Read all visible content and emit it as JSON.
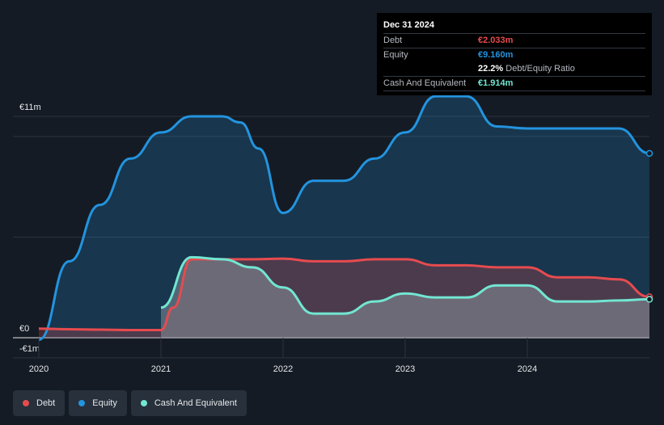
{
  "tooltip": {
    "date": "Dec 31 2024",
    "debt_label": "Debt",
    "debt_value": "€2.033m",
    "equity_label": "Equity",
    "equity_value": "€9.160m",
    "ratio_value": "22.2%",
    "ratio_text": "Debt/Equity Ratio",
    "cash_label": "Cash And Equivalent",
    "cash_value": "€1.914m"
  },
  "legend": [
    {
      "label": "Debt",
      "color": "#e64b4f"
    },
    {
      "label": "Equity",
      "color": "#2394df"
    },
    {
      "label": "Cash And Equivalent",
      "color": "#72e6d2"
    }
  ],
  "chart_data": {
    "type": "area",
    "y_tick_labels": [
      "€11m",
      "€0",
      "-€1m"
    ],
    "x_tick_labels": [
      "2020",
      "2021",
      "2022",
      "2023",
      "2024"
    ],
    "ylim": [
      -1,
      11
    ],
    "xlim": [
      2020,
      2025
    ],
    "grid": true,
    "legend_position": "bottom-left",
    "series": [
      {
        "name": "Equity",
        "color": "#2394df",
        "points": [
          [
            2020.0,
            -0.1
          ],
          [
            2020.25,
            3.8
          ],
          [
            2020.5,
            6.6
          ],
          [
            2020.75,
            8.9
          ],
          [
            2021.0,
            10.2
          ],
          [
            2021.25,
            11.0
          ],
          [
            2021.5,
            11.0
          ],
          [
            2021.65,
            10.7
          ],
          [
            2021.8,
            9.4
          ],
          [
            2022.0,
            6.2
          ],
          [
            2022.25,
            7.8
          ],
          [
            2022.5,
            7.8
          ],
          [
            2022.75,
            8.9
          ],
          [
            2023.0,
            10.2
          ],
          [
            2023.25,
            12.0
          ],
          [
            2023.5,
            12.0
          ],
          [
            2023.75,
            10.5
          ],
          [
            2024.0,
            10.4
          ],
          [
            2024.25,
            10.4
          ],
          [
            2024.5,
            10.4
          ],
          [
            2024.75,
            10.4
          ],
          [
            2025.0,
            9.16
          ]
        ]
      },
      {
        "name": "Debt",
        "color": "#e64b4f",
        "points": [
          [
            2020.0,
            0.45
          ],
          [
            2020.25,
            0.42
          ],
          [
            2020.5,
            0.4
          ],
          [
            2020.75,
            0.38
          ],
          [
            2021.0,
            0.38
          ],
          [
            2021.1,
            1.5
          ],
          [
            2021.25,
            3.9
          ],
          [
            2021.5,
            3.9
          ],
          [
            2021.75,
            3.9
          ],
          [
            2022.0,
            3.93
          ],
          [
            2022.25,
            3.8
          ],
          [
            2022.5,
            3.8
          ],
          [
            2022.75,
            3.9
          ],
          [
            2023.0,
            3.9
          ],
          [
            2023.25,
            3.6
          ],
          [
            2023.5,
            3.6
          ],
          [
            2023.75,
            3.5
          ],
          [
            2024.0,
            3.5
          ],
          [
            2024.25,
            3.0
          ],
          [
            2024.5,
            3.0
          ],
          [
            2024.75,
            2.9
          ],
          [
            2025.0,
            2.03
          ]
        ]
      },
      {
        "name": "Cash And Equivalent",
        "color": "#72e6d2",
        "points": [
          [
            2021.0,
            1.5
          ],
          [
            2021.25,
            4.0
          ],
          [
            2021.5,
            3.9
          ],
          [
            2021.75,
            3.5
          ],
          [
            2022.0,
            2.5
          ],
          [
            2022.25,
            1.2
          ],
          [
            2022.5,
            1.2
          ],
          [
            2022.75,
            1.8
          ],
          [
            2023.0,
            2.2
          ],
          [
            2023.25,
            2.0
          ],
          [
            2023.5,
            2.0
          ],
          [
            2023.75,
            2.6
          ],
          [
            2024.0,
            2.6
          ],
          [
            2024.25,
            1.8
          ],
          [
            2024.5,
            1.8
          ],
          [
            2024.75,
            1.85
          ],
          [
            2025.0,
            1.91
          ]
        ]
      }
    ]
  }
}
